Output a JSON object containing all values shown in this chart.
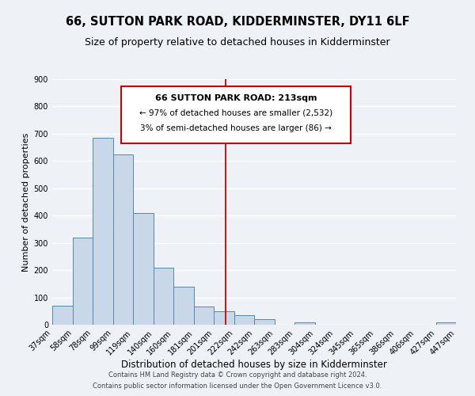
{
  "title": "66, SUTTON PARK ROAD, KIDDERMINSTER, DY11 6LF",
  "subtitle": "Size of property relative to detached houses in Kidderminster",
  "xlabel": "Distribution of detached houses by size in Kidderminster",
  "ylabel": "Number of detached properties",
  "bar_left_edges": [
    37,
    58,
    78,
    99,
    119,
    140,
    160,
    181,
    201,
    222,
    242,
    263,
    283,
    304,
    324,
    345,
    365,
    386,
    406,
    427
  ],
  "bar_widths": [
    21,
    20,
    21,
    20,
    21,
    20,
    21,
    20,
    21,
    20,
    21,
    21,
    21,
    20,
    21,
    20,
    21,
    20,
    21,
    20
  ],
  "bar_heights": [
    70,
    320,
    685,
    625,
    410,
    210,
    138,
    68,
    48,
    35,
    20,
    0,
    10,
    0,
    0,
    0,
    0,
    0,
    0,
    8
  ],
  "bar_color": "#c8d8e8",
  "bar_edge_color": "#5588aa",
  "tick_labels": [
    "37sqm",
    "58sqm",
    "78sqm",
    "99sqm",
    "119sqm",
    "140sqm",
    "160sqm",
    "181sqm",
    "201sqm",
    "222sqm",
    "242sqm",
    "263sqm",
    "283sqm",
    "304sqm",
    "324sqm",
    "345sqm",
    "365sqm",
    "386sqm",
    "406sqm",
    "427sqm",
    "447sqm"
  ],
  "ylim": [
    0,
    900
  ],
  "yticks": [
    0,
    100,
    200,
    300,
    400,
    500,
    600,
    700,
    800,
    900
  ],
  "vline_x": 213,
  "vline_color": "#cc0000",
  "annotation_title": "66 SUTTON PARK ROAD: 213sqm",
  "annotation_line1": "← 97% of detached houses are smaller (2,532)",
  "annotation_line2": "3% of semi-detached houses are larger (86) →",
  "annotation_box_color": "#ffffff",
  "annotation_box_edge": "#cc0000",
  "footer_line1": "Contains HM Land Registry data © Crown copyright and database right 2024.",
  "footer_line2": "Contains public sector information licensed under the Open Government Licence v3.0.",
  "background_color": "#eef2f7",
  "plot_bg_color": "#eef2f7",
  "grid_color": "#ffffff",
  "title_fontsize": 10.5,
  "subtitle_fontsize": 9,
  "xlabel_fontsize": 8.5,
  "ylabel_fontsize": 8,
  "tick_fontsize": 7,
  "footer_fontsize": 6,
  "ann_title_fontsize": 8,
  "ann_text_fontsize": 7.5
}
